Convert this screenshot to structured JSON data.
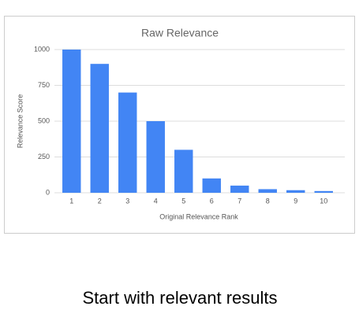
{
  "chart_data": {
    "type": "bar",
    "title": "Raw Relevance",
    "x_label": "Original Relevance Rank",
    "y_label": "Relevance Score",
    "categories": [
      "1",
      "2",
      "3",
      "4",
      "5",
      "6",
      "7",
      "8",
      "9",
      "10"
    ],
    "values": [
      1000,
      900,
      700,
      500,
      300,
      100,
      50,
      25,
      18,
      12
    ],
    "color": "#4285f4",
    "ylim": [
      0,
      1000
    ],
    "yticks": [
      0,
      250,
      500,
      750,
      1000
    ],
    "grid": true
  },
  "caption": "Start with relevant results"
}
